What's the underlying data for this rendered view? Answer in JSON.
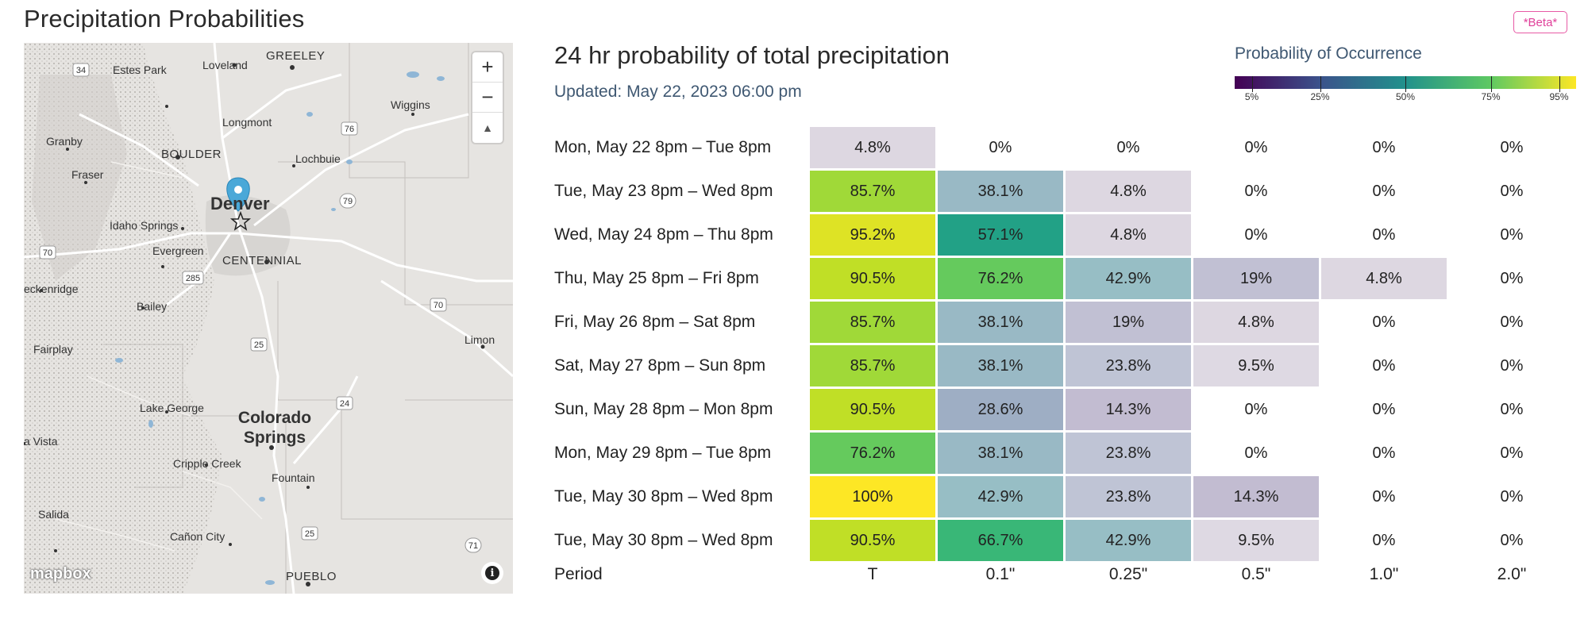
{
  "header": {
    "title": "Precipitation Probabilities",
    "beta_label": "*Beta*"
  },
  "map": {
    "zoom_in": "+",
    "zoom_out": "−",
    "compass": "▲",
    "attribution": "mapbox",
    "info": "i",
    "labels": {
      "greeley": "GREELEY",
      "loveland": "Loveland",
      "estes": "Estes Park",
      "wiggins": "Wiggins",
      "longmont": "Longmont",
      "granby": "Granby",
      "boulder": "BOULDER",
      "lochbuie": "Lochbuie",
      "fraser": "Fraser",
      "denver": "Denver",
      "idaho": "Idaho Springs",
      "evergreen": "Evergreen",
      "centennial": "CENTENNIAL",
      "breck": "eckenridge",
      "bailey": "Bailey",
      "limon": "Limon",
      "fairplay": "Fairplay",
      "lakegeorge": "Lake George",
      "cospr1": "Colorado",
      "cospr2": "Springs",
      "vista": "a Vista",
      "cripple": "Cripple Creek",
      "fountain": "Fountain",
      "salida": "Salida",
      "canon": "Cañon City",
      "pueblo": "PUEBLO"
    },
    "shields": [
      "34",
      "76",
      "79",
      "70",
      "285",
      "70",
      "25",
      "24",
      "25",
      "71"
    ]
  },
  "chart_title": "24 hr probability of total precipitation",
  "updated": "Updated: May 22, 2023 06:00 pm",
  "legend": {
    "title": "Probability of Occurrence",
    "ticks": [
      "5%",
      "25%",
      "50%",
      "75%",
      "95%"
    ],
    "tick_values": [
      5,
      25,
      50,
      75,
      95
    ]
  },
  "chart_data": {
    "type": "table",
    "columns": [
      "T",
      "0.1\"",
      "0.25\"",
      "0.5\"",
      "1.0\"",
      "2.0\""
    ],
    "row_header": "Period",
    "rows": [
      {
        "period": "Mon, May 22 8pm – Tue 8pm",
        "values": [
          "4.8%",
          "0%",
          "0%",
          "0%",
          "0%",
          "0%"
        ],
        "numeric": [
          4.8,
          0,
          0,
          0,
          0,
          0
        ]
      },
      {
        "period": "Tue, May 23 8pm – Wed 8pm",
        "values": [
          "85.7%",
          "38.1%",
          "4.8%",
          "0%",
          "0%",
          "0%"
        ],
        "numeric": [
          85.7,
          38.1,
          4.8,
          0,
          0,
          0
        ]
      },
      {
        "period": "Wed, May 24 8pm – Thu 8pm",
        "values": [
          "95.2%",
          "57.1%",
          "4.8%",
          "0%",
          "0%",
          "0%"
        ],
        "numeric": [
          95.2,
          57.1,
          4.8,
          0,
          0,
          0
        ]
      },
      {
        "period": "Thu, May 25 8pm – Fri 8pm",
        "values": [
          "90.5%",
          "76.2%",
          "42.9%",
          "19%",
          "4.8%",
          "0%"
        ],
        "numeric": [
          90.5,
          76.2,
          42.9,
          19,
          4.8,
          0
        ]
      },
      {
        "period": "Fri, May 26 8pm – Sat 8pm",
        "values": [
          "85.7%",
          "38.1%",
          "19%",
          "4.8%",
          "0%",
          "0%"
        ],
        "numeric": [
          85.7,
          38.1,
          19,
          4.8,
          0,
          0
        ]
      },
      {
        "period": "Sat, May 27 8pm – Sun 8pm",
        "values": [
          "85.7%",
          "38.1%",
          "23.8%",
          "9.5%",
          "0%",
          "0%"
        ],
        "numeric": [
          85.7,
          38.1,
          23.8,
          9.5,
          0,
          0
        ]
      },
      {
        "period": "Sun, May 28 8pm – Mon 8pm",
        "values": [
          "90.5%",
          "28.6%",
          "14.3%",
          "0%",
          "0%",
          "0%"
        ],
        "numeric": [
          90.5,
          28.6,
          14.3,
          0,
          0,
          0
        ]
      },
      {
        "period": "Mon, May 29 8pm – Tue 8pm",
        "values": [
          "76.2%",
          "38.1%",
          "23.8%",
          "0%",
          "0%",
          "0%"
        ],
        "numeric": [
          76.2,
          38.1,
          23.8,
          0,
          0,
          0
        ]
      },
      {
        "period": "Tue, May 30 8pm – Wed 8pm",
        "values": [
          "100%",
          "42.9%",
          "23.8%",
          "14.3%",
          "0%",
          "0%"
        ],
        "numeric": [
          100,
          42.9,
          23.8,
          14.3,
          0,
          0
        ]
      },
      {
        "period": "Tue, May 30 8pm – Wed 8pm",
        "values": [
          "90.5%",
          "66.7%",
          "42.9%",
          "9.5%",
          "0%",
          "0%"
        ],
        "numeric": [
          90.5,
          66.7,
          42.9,
          9.5,
          0,
          0
        ]
      }
    ]
  }
}
